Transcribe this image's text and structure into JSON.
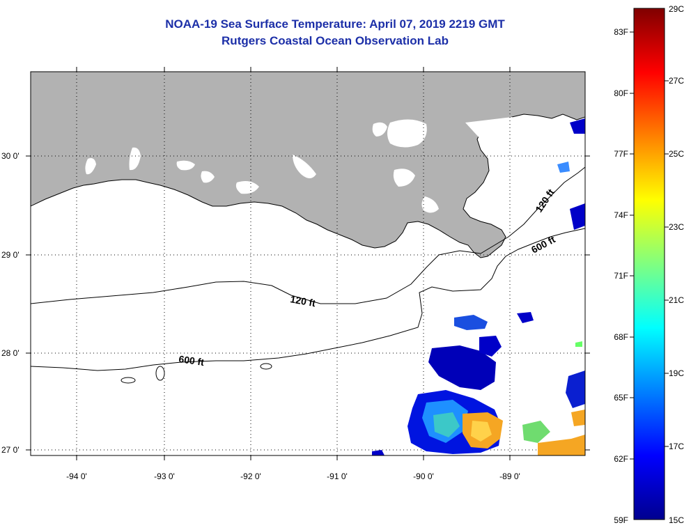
{
  "title": {
    "line1": "NOAA-19 Sea Surface Temperature:  April 07, 2019 2219 GMT",
    "line2": "Rutgers Coastal Ocean Observation Lab"
  },
  "map": {
    "lon_ticks": [
      {
        "value": -94,
        "label": "-94 0'"
      },
      {
        "value": -93,
        "label": "-93 0'"
      },
      {
        "value": -92,
        "label": "-92 0'"
      },
      {
        "value": -91,
        "label": "-91 0'"
      },
      {
        "value": -90,
        "label": "-90 0'"
      },
      {
        "value": -89,
        "label": "-89 0'"
      }
    ],
    "lat_ticks": [
      {
        "value": 30,
        "label": "30 0'"
      },
      {
        "value": 29,
        "label": "29 0'"
      },
      {
        "value": 28,
        "label": "28 0'"
      },
      {
        "value": 27,
        "label": "27 0'"
      }
    ],
    "contours": [
      {
        "label": "120 ft"
      },
      {
        "label": "600 ft"
      },
      {
        "label": "120 ft"
      },
      {
        "label": "600 ft"
      }
    ],
    "colors": {
      "land": "#b2b2b2",
      "coastline": "#000000",
      "grid": "#000000"
    }
  },
  "colorbar": {
    "fahrenheit_labels": [
      "83F",
      "80F",
      "77F",
      "74F",
      "71F",
      "68F",
      "65F",
      "62F",
      "59F"
    ],
    "celsius_labels": [
      "29C",
      "27C",
      "25C",
      "23C",
      "21C",
      "19C",
      "17C",
      "15C"
    ],
    "range_c": [
      15,
      29
    ],
    "colormap": "jet"
  }
}
